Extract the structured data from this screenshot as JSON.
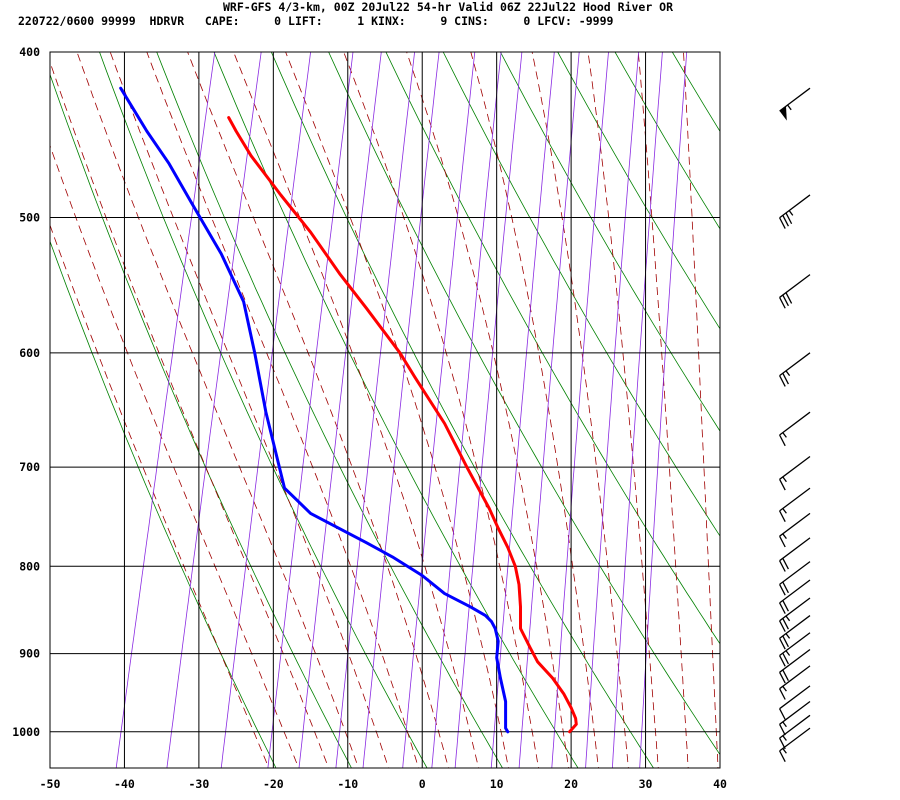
{
  "header": {
    "line1": "WRF-GFS 4/3-km, 00Z 20Jul22 54-hr Valid 06Z 22Jul22 Hood River OR",
    "line2": "220722/0600 99999  HDRVR   CAPE:     0 LIFT:     1 KINX:     9 CINS:     0 LFCV: -9999"
  },
  "chart_data": {
    "type": "line",
    "title": "",
    "xlabel": "",
    "ylabel": "",
    "xlim": [
      -50,
      40
    ],
    "ylim": [
      400,
      1050
    ],
    "y_scale": "log",
    "grid": true,
    "x_ticks": [
      "-50",
      "-40",
      "-30",
      "-20",
      "-10",
      "0",
      "10",
      "20",
      "30",
      "40"
    ],
    "y_ticks": [
      "400",
      "500",
      "600",
      "700",
      "800",
      "900",
      "1000"
    ],
    "series": [
      {
        "color": "#ff0000",
        "points": [
          [
            19.8,
            1000
          ],
          [
            20.7,
            990
          ],
          [
            20.6,
            982
          ],
          [
            20.0,
            968
          ],
          [
            19.0,
            950
          ],
          [
            17.5,
            930
          ],
          [
            15.5,
            910
          ],
          [
            14.5,
            893
          ],
          [
            13.2,
            870
          ],
          [
            13.2,
            845
          ],
          [
            13.0,
            820
          ],
          [
            12.5,
            800
          ],
          [
            11.5,
            780
          ],
          [
            10.2,
            760
          ],
          [
            9.0,
            740
          ],
          [
            6.0,
            700
          ],
          [
            3.0,
            660
          ],
          [
            -1.0,
            620
          ],
          [
            -3.0,
            600
          ],
          [
            -7.5,
            565
          ],
          [
            -11.0,
            540
          ],
          [
            -15.0,
            510
          ],
          [
            -19.0,
            485
          ],
          [
            -23.0,
            460
          ],
          [
            -25.0,
            445
          ],
          [
            -26.0,
            437
          ]
        ]
      },
      {
        "color": "#0000ff",
        "points": [
          [
            11.5,
            1000
          ],
          [
            11.2,
            995
          ],
          [
            11.2,
            960
          ],
          [
            10.5,
            930
          ],
          [
            10.0,
            905
          ],
          [
            10.2,
            885
          ],
          [
            9.8,
            870
          ],
          [
            9.3,
            862
          ],
          [
            8.5,
            855
          ],
          [
            6.5,
            845
          ],
          [
            3.0,
            830
          ],
          [
            0.0,
            810
          ],
          [
            -4.0,
            790
          ],
          [
            -7.5,
            775
          ],
          [
            -15.0,
            745
          ],
          [
            -18.5,
            720
          ],
          [
            -21.0,
            650
          ],
          [
            -22.5,
            600
          ],
          [
            -24.0,
            560
          ],
          [
            -27.0,
            525
          ],
          [
            -31.0,
            490
          ],
          [
            -34.0,
            465
          ],
          [
            -37.0,
            445
          ],
          [
            -40.5,
            420
          ]
        ]
      }
    ],
    "wind_barbs": [
      {
        "pressure": 420,
        "speed_kt": 55
      },
      {
        "pressure": 485,
        "speed_kt": 35
      },
      {
        "pressure": 540,
        "speed_kt": 30
      },
      {
        "pressure": 600,
        "speed_kt": 25
      },
      {
        "pressure": 650,
        "speed_kt": 15
      },
      {
        "pressure": 690,
        "speed_kt": 15
      },
      {
        "pressure": 720,
        "speed_kt": 15
      },
      {
        "pressure": 745,
        "speed_kt": 15
      },
      {
        "pressure": 770,
        "speed_kt": 20
      },
      {
        "pressure": 795,
        "speed_kt": 20
      },
      {
        "pressure": 815,
        "speed_kt": 20
      },
      {
        "pressure": 835,
        "speed_kt": 25
      },
      {
        "pressure": 855,
        "speed_kt": 25
      },
      {
        "pressure": 875,
        "speed_kt": 25
      },
      {
        "pressure": 895,
        "speed_kt": 20
      },
      {
        "pressure": 915,
        "speed_kt": 15
      },
      {
        "pressure": 940,
        "speed_kt": 10
      },
      {
        "pressure": 960,
        "speed_kt": 15
      },
      {
        "pressure": 978,
        "speed_kt": 15
      },
      {
        "pressure": 995,
        "speed_kt": 15
      }
    ]
  }
}
